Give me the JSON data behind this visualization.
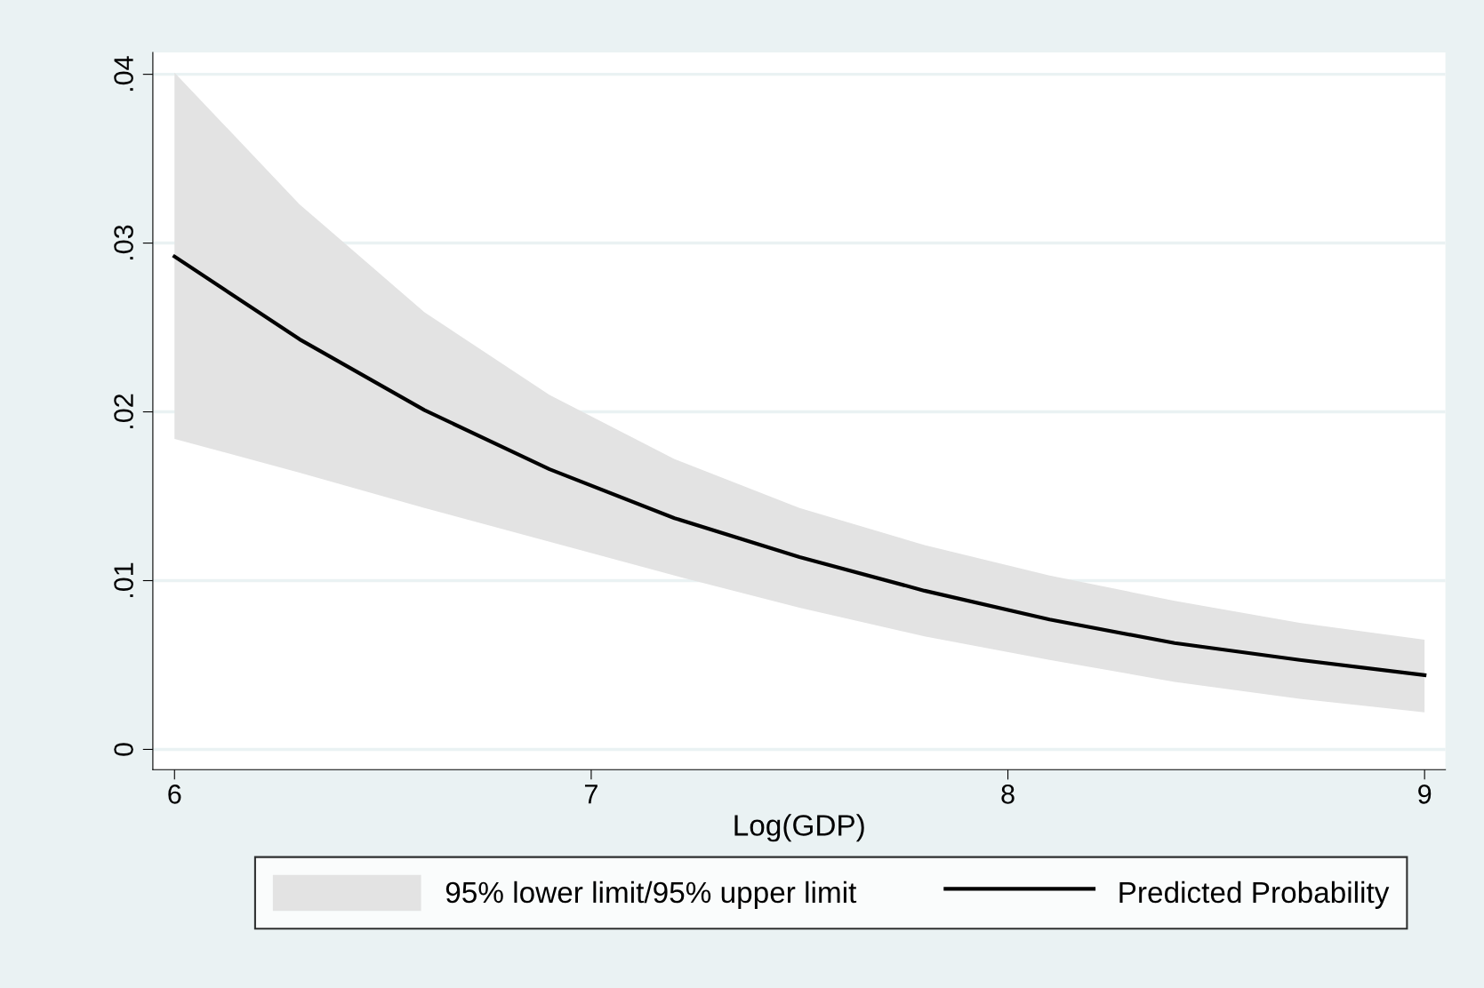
{
  "chart_data": {
    "type": "line",
    "xlabel": "Log(GDP)",
    "x": [
      6,
      6.3,
      6.6,
      6.9,
      7.2,
      7.5,
      7.8,
      8.1,
      8.4,
      8.7,
      9
    ],
    "series": [
      {
        "name": "Predicted Probability",
        "color": "#000000",
        "values": [
          0.0292,
          0.0243,
          0.0201,
          0.0166,
          0.0137,
          0.0114,
          0.0094,
          0.0077,
          0.0063,
          0.0053,
          0.0044
        ],
        "lower": [
          0.0184,
          0.0164,
          0.0143,
          0.0123,
          0.0103,
          0.0084,
          0.0067,
          0.0053,
          0.004,
          0.003,
          0.0022
        ],
        "upper": [
          0.0401,
          0.0323,
          0.0259,
          0.021,
          0.0172,
          0.0143,
          0.0121,
          0.0103,
          0.0088,
          0.0075,
          0.0065
        ]
      }
    ],
    "annotations": [
      "95% lower limit/95% upper limit"
    ],
    "xlim": [
      5.948,
      9.05
    ],
    "ylim": [
      -0.0012,
      0.0413
    ],
    "xticks": [
      6,
      7,
      8,
      9
    ],
    "yticks": [
      {
        "value": 0,
        "label": "0"
      },
      {
        "value": 0.01,
        "label": ".01"
      },
      {
        "value": 0.02,
        "label": ".02"
      },
      {
        "value": 0.03,
        "label": ".03"
      },
      {
        "value": 0.04,
        "label": ".04"
      }
    ],
    "grid": "y",
    "legend": "bottom",
    "line_style": "solid",
    "marker": "none"
  }
}
